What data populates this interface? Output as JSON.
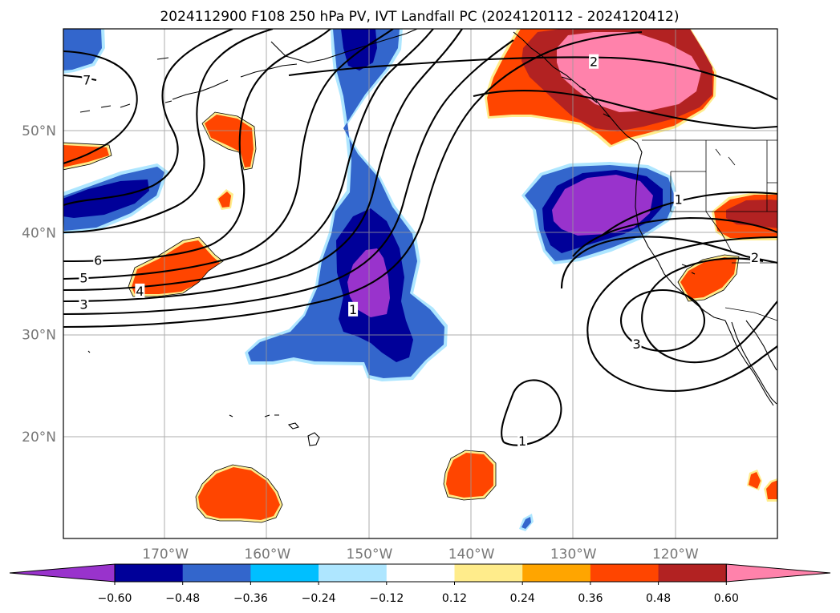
{
  "title": "2024112900 F108 250 hPa PV, IVT Landfall PC (2024120112 - 2024120412)",
  "map": {
    "lon_ticks": [
      {
        "label": "170°W",
        "lon": -170
      },
      {
        "label": "160°W",
        "lon": -160
      },
      {
        "label": "150°W",
        "lon": -150
      },
      {
        "label": "140°W",
        "lon": -140
      },
      {
        "label": "130°W",
        "lon": -130
      },
      {
        "label": "120°W",
        "lon": -120
      }
    ],
    "lat_ticks": [
      {
        "label": "50°N",
        "lat": 50
      },
      {
        "label": "40°N",
        "lat": 40
      },
      {
        "label": "30°N",
        "lat": 30
      },
      {
        "label": "20°N",
        "lat": 20
      }
    ],
    "contour_labels": [
      {
        "text": "7",
        "lon": -177.7,
        "lat": 55.0
      },
      {
        "text": "6",
        "lon": -176.6,
        "lat": 37.3
      },
      {
        "text": "5",
        "lon": -178.0,
        "lat": 35.6
      },
      {
        "text": "4",
        "lon": -172.5,
        "lat": 34.3
      },
      {
        "text": "3",
        "lon": -178.0,
        "lat": 33.0
      },
      {
        "text": "1",
        "lon": -151.6,
        "lat": 32.5
      },
      {
        "text": "2",
        "lon": -128.0,
        "lat": 56.8
      },
      {
        "text": "1",
        "lon": -119.7,
        "lat": 43.3
      },
      {
        "text": "2",
        "lon": -112.2,
        "lat": 37.6
      },
      {
        "text": "3",
        "lon": -123.8,
        "lat": 29.1
      },
      {
        "text": "1",
        "lon": -135.0,
        "lat": 19.6
      }
    ]
  },
  "colorbar": {
    "colors": [
      "#9933cc",
      "#000099",
      "#3366cc",
      "#00bfff",
      "#aee6ff",
      "#ffffff",
      "#ffec8b",
      "#ffa500",
      "#ff4500",
      "#b22222",
      "#ff82ab"
    ],
    "tick_labels": [
      "−0.60",
      "−0.48",
      "−0.36",
      "−0.24",
      "−0.12",
      "0.12",
      "0.24",
      "0.36",
      "0.48",
      "0.60"
    ]
  }
}
